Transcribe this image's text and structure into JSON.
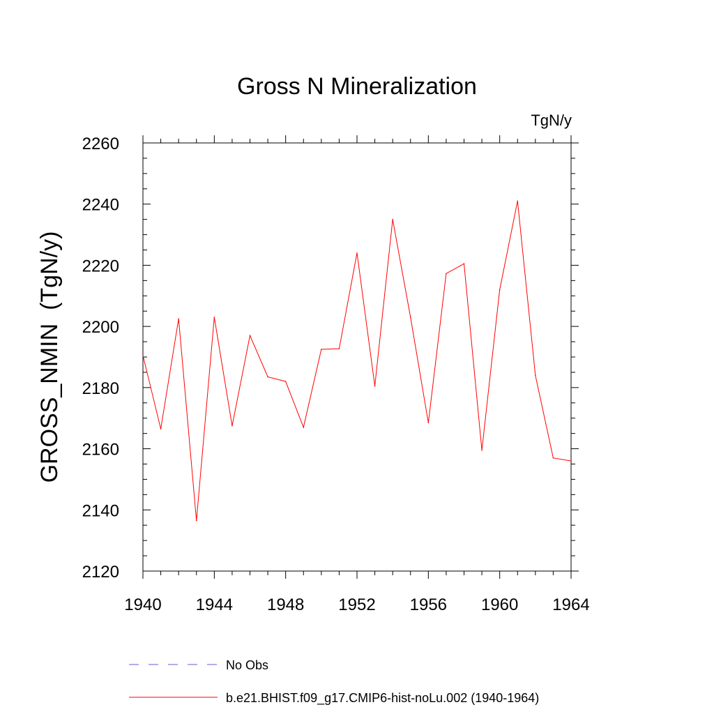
{
  "chart_data": {
    "type": "line",
    "title": "Gross N Mineralization",
    "units_label": "TgN/y",
    "ylabel": "GROSS_NMIN  (TgN/y)",
    "xlabel": "",
    "xlim": [
      1940,
      1964
    ],
    "ylim": [
      2120,
      2260
    ],
    "x_ticks": [
      1940,
      1944,
      1948,
      1952,
      1956,
      1960,
      1964
    ],
    "y_ticks": [
      2120,
      2140,
      2160,
      2180,
      2200,
      2220,
      2240,
      2260
    ],
    "x_minor_step": 1,
    "y_minor_step": 5,
    "grid": false,
    "legend_position": "bottom",
    "series": [
      {
        "name": "b.e21.BHIST.f09_g17.CMIP6-hist-noLu.002 (1940-1964)",
        "color": "#ff0000",
        "style": "solid",
        "x": [
          1940,
          1941,
          1942,
          1943,
          1944,
          1945,
          1946,
          1947,
          1948,
          1949,
          1950,
          1951,
          1952,
          1953,
          1954,
          1955,
          1956,
          1957,
          1958,
          1959,
          1960,
          1961,
          1962,
          1963,
          1964
        ],
        "values": [
          2190.5,
          2166.5,
          2202.5,
          2136.5,
          2203,
          2167.5,
          2197,
          2183.5,
          2182,
          2167,
          2192.5,
          2192.7,
          2224,
          2180.5,
          2235,
          2203,
          2168.5,
          2217.3,
          2220.5,
          2159.5,
          2212,
          2241,
          2184,
          2157,
          2156
        ]
      },
      {
        "name": "No Obs",
        "color": "#6a5acd",
        "style": "dashed",
        "x": [],
        "values": []
      }
    ]
  }
}
